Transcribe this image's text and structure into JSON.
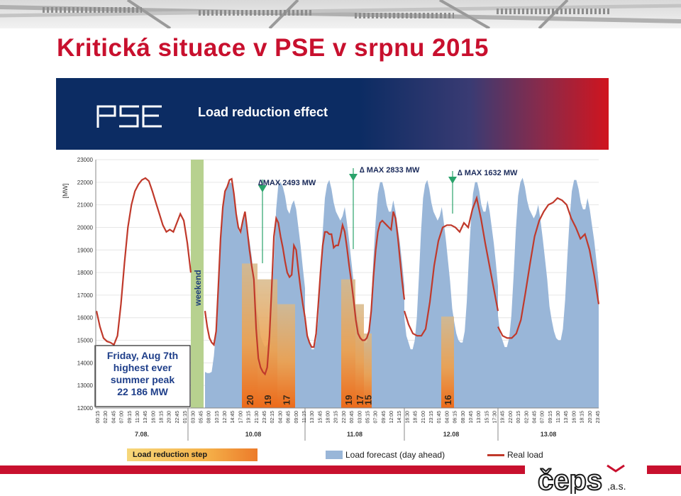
{
  "slide": {
    "title": "Kritická situace v PSE v srpnu 2015"
  },
  "header": {
    "logo_text": "PSE",
    "title": "Load reduction effect",
    "logo_icon": "pse-logo-icon"
  },
  "footer": {
    "company_logo": "čeps",
    "company_suffix": ",a.s."
  },
  "colors": {
    "title_red": "#c8102e",
    "header_blue": "#0c2c63",
    "forecast_fill": "#99b6d8",
    "real_load_line": "#c0392b",
    "weekend_bar": "#b7d18f"
  },
  "chart_data": {
    "type": "area",
    "ylabel": "[MW]",
    "ylim": [
      12000,
      23000
    ],
    "yticks": [
      "23000",
      "22000",
      "21000",
      "20000",
      "19000",
      "18000",
      "17000",
      "16000",
      "15000",
      "14000",
      "13000",
      "12000"
    ],
    "day_labels": [
      "7.08.",
      "10.08",
      "11.08",
      "12.08",
      "13.08"
    ],
    "x_tick_labels": [
      "00:15",
      "02:30",
      "04:45",
      "07:00",
      "09:15",
      "11:30",
      "13:45",
      "16:00",
      "18:15",
      "20:30",
      "22:45",
      "01:15",
      "03:30",
      "05:45",
      "08:00",
      "10:15",
      "12:30",
      "14:45",
      "17:00",
      "19:15",
      "21:30",
      "23:45",
      "02:15",
      "04:30",
      "06:45",
      "09:00",
      "11:15",
      "13:30",
      "15:45",
      "18:00",
      "20:15",
      "22:30",
      "00:45",
      "03:00",
      "05:15",
      "07:30",
      "09:45",
      "12:00",
      "14:15",
      "16:30",
      "18:45",
      "21:00",
      "23:15",
      "01:45",
      "04:00",
      "06:15",
      "08:30",
      "10:45",
      "13:00",
      "15:15",
      "17:30",
      "19:45",
      "22:00",
      "00:15",
      "02:30",
      "04:45",
      "07:00",
      "09:15",
      "11:30",
      "13:45",
      "16:00",
      "18:15",
      "20:30",
      "23:45"
    ],
    "weekend_label": "weekend",
    "note": {
      "line1": "Friday, Aug 7th",
      "line2": "highest ever",
      "line3": "summer peak",
      "line4": "22 186 MW"
    },
    "max_annotations": [
      "∆MAX 2493 MW",
      "∆ MAX 2833 MW",
      "∆  MAX 1632 MW"
    ],
    "reduction_steps": [
      {
        "day": "10.08",
        "step": "20",
        "level": 18400
      },
      {
        "day": "10.08",
        "step": "19",
        "level": 17700
      },
      {
        "day": "10.08",
        "step": "17",
        "level": 16600
      },
      {
        "day": "11.08",
        "step": "19",
        "level": 17700
      },
      {
        "day": "11.08",
        "step": "17",
        "level": 16600
      },
      {
        "day": "11.08",
        "step": "15",
        "level": 15300
      },
      {
        "day": "12.08",
        "step": "16",
        "level": 16050
      }
    ],
    "series": [
      {
        "name": "Load forecast (day ahead)",
        "values": [
          [
            13600,
            13550,
            13550,
            13600,
            14300,
            15500,
            17500,
            19300,
            20800,
            21500,
            21800,
            22000,
            21950,
            21400,
            20500,
            19900,
            19700,
            20200,
            20500,
            20000,
            19400,
            18700,
            17700,
            16400,
            16000,
            15200,
            14900,
            14700,
            14800,
            15200,
            16600,
            18600,
            20800,
            21900,
            22000,
            21800,
            21400,
            20800,
            20600,
            21000,
            21200,
            20800,
            20000,
            19200,
            18200,
            17300
          ],
          [
            16000,
            15200,
            14900,
            14600,
            14600,
            15000,
            16000,
            17800,
            19800,
            21300,
            21900,
            22100,
            21700,
            21100,
            20700,
            20500,
            20300,
            20500,
            20900,
            20200,
            19400,
            18500,
            17600,
            16400,
            15800,
            15300,
            15000,
            14900,
            14900,
            15400,
            16700,
            18600,
            20300,
            21500,
            22000,
            22000,
            21600,
            21000,
            20700,
            20700,
            21200,
            20700,
            20000,
            19300,
            18400,
            17400
          ]
        ]
      },
      {
        "name": "Real load",
        "values": [
          [
            16300,
            15600,
            15100,
            14900,
            14800,
            15400,
            17400,
            19500,
            20900,
            21600,
            21800,
            22100,
            22150,
            21500,
            20600,
            20000,
            19800,
            20300,
            20700,
            19900,
            19000,
            18300,
            17700,
            15500,
            14200,
            13800,
            13600,
            13500,
            13800,
            15200,
            17300,
            19600,
            20400,
            20200,
            19600,
            19100,
            18500,
            18000,
            17800,
            17900,
            19200,
            19000,
            18100,
            17300,
            16600,
            16000
          ],
          [
            16000,
            15200,
            14900,
            14700,
            14700,
            15300,
            16600,
            18000,
            19200,
            19800,
            19800,
            19700,
            19700,
            19100,
            19200,
            19200,
            19600,
            20100,
            19800,
            19100,
            18300,
            17600,
            16800,
            15900,
            15300,
            15100,
            15000,
            15000,
            15100,
            15400,
            16300,
            17800,
            19000,
            19800,
            20200,
            20300,
            20200,
            20100,
            20000,
            19900,
            20700,
            20400,
            19600,
            18600,
            17600,
            16800
          ]
        ]
      }
    ],
    "legend": {
      "step": "Load reduction step",
      "forecast": "Load forecast (day ahead)",
      "real": "Real load",
      "placement": "bottom"
    }
  }
}
